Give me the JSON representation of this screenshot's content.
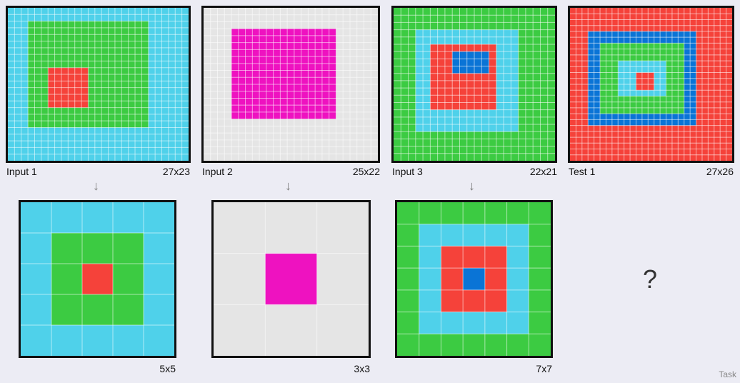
{
  "colors": {
    "cyan": "#4fd1ea",
    "green": "#3ccb42",
    "red": "#f5423a",
    "blue": "#0a74d6",
    "magenta": "#ee12c0",
    "gray": "#e5e5e5"
  },
  "panels": [
    {
      "id": "input-1",
      "label": "Input 1",
      "size_label": "27x23",
      "cols": 27,
      "rows": 23,
      "layers": [
        {
          "color": "cyan",
          "c0": 0,
          "r0": 0,
          "c1": 27,
          "r1": 23
        },
        {
          "color": "green",
          "c0": 3,
          "r0": 2,
          "c1": 21,
          "r1": 18
        },
        {
          "color": "red",
          "c0": 6,
          "r0": 9,
          "c1": 12,
          "r1": 15
        }
      ]
    },
    {
      "id": "input-2",
      "label": "Input 2",
      "size_label": "25x22",
      "cols": 25,
      "rows": 22,
      "layers": [
        {
          "color": "gray",
          "c0": 0,
          "r0": 0,
          "c1": 25,
          "r1": 22
        },
        {
          "color": "magenta",
          "c0": 4,
          "r0": 3,
          "c1": 19,
          "r1": 16
        }
      ]
    },
    {
      "id": "input-3",
      "label": "Input 3",
      "size_label": "22x21",
      "cols": 22,
      "rows": 21,
      "layers": [
        {
          "color": "green",
          "c0": 0,
          "r0": 0,
          "c1": 22,
          "r1": 21
        },
        {
          "color": "cyan",
          "c0": 3,
          "r0": 3,
          "c1": 17,
          "r1": 17
        },
        {
          "color": "red",
          "c0": 5,
          "r0": 5,
          "c1": 14,
          "r1": 14
        },
        {
          "color": "blue",
          "c0": 8,
          "r0": 6,
          "c1": 13,
          "r1": 9
        }
      ]
    },
    {
      "id": "test-1",
      "label": "Test 1",
      "size_label": "27x26",
      "cols": 27,
      "rows": 26,
      "layers": [
        {
          "color": "red",
          "c0": 0,
          "r0": 0,
          "c1": 27,
          "r1": 26
        },
        {
          "color": "blue",
          "c0": 3,
          "r0": 4,
          "c1": 21,
          "r1": 20
        },
        {
          "color": "green",
          "c0": 5,
          "r0": 6,
          "c1": 19,
          "r1": 18
        },
        {
          "color": "cyan",
          "c0": 8,
          "r0": 9,
          "c1": 16,
          "r1": 15
        },
        {
          "color": "red",
          "c0": 11,
          "r0": 11,
          "c1": 14,
          "r1": 14
        }
      ]
    },
    {
      "id": "output-1",
      "label": "",
      "size_label": "5x5",
      "cols": 5,
      "rows": 5,
      "layers": [
        {
          "color": "cyan",
          "c0": 0,
          "r0": 0,
          "c1": 5,
          "r1": 5
        },
        {
          "color": "green",
          "c0": 1,
          "r0": 1,
          "c1": 4,
          "r1": 4
        },
        {
          "color": "red",
          "c0": 2,
          "r0": 2,
          "c1": 3,
          "r1": 3
        }
      ]
    },
    {
      "id": "output-2",
      "label": "",
      "size_label": "3x3",
      "cols": 3,
      "rows": 3,
      "layers": [
        {
          "color": "gray",
          "c0": 0,
          "r0": 0,
          "c1": 3,
          "r1": 3
        },
        {
          "color": "magenta",
          "c0": 1,
          "r0": 1,
          "c1": 2,
          "r1": 2
        }
      ]
    },
    {
      "id": "output-3",
      "label": "",
      "size_label": "7x7",
      "cols": 7,
      "rows": 7,
      "layers": [
        {
          "color": "green",
          "c0": 0,
          "r0": 0,
          "c1": 7,
          "r1": 7
        },
        {
          "color": "cyan",
          "c0": 1,
          "r0": 1,
          "c1": 6,
          "r1": 6
        },
        {
          "color": "red",
          "c0": 2,
          "r0": 2,
          "c1": 5,
          "r1": 5
        },
        {
          "color": "blue",
          "c0": 3,
          "r0": 3,
          "c1": 4,
          "r1": 4
        }
      ]
    }
  ],
  "arrow_glyph": "↓",
  "question": "?",
  "footer": "Task"
}
